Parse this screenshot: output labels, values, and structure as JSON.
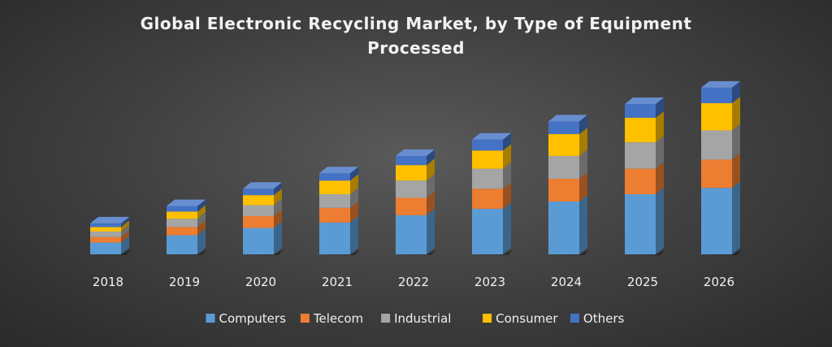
{
  "chart_data": {
    "type": "bar",
    "stacked": true,
    "style": "3d-column",
    "title": "Global Electronic Recycling Market, by Type of Equipment Processed",
    "categories": [
      "2018",
      "2019",
      "2020",
      "2021",
      "2022",
      "2023",
      "2024",
      "2025",
      "2026"
    ],
    "series": [
      {
        "name": "Computers",
        "color": "#5b9bd5",
        "values": [
          13,
          21,
          29,
          35,
          43,
          50,
          58,
          66,
          73
        ]
      },
      {
        "name": "Telecom",
        "color": "#ed7d31",
        "values": [
          6,
          9,
          13,
          16,
          19,
          22,
          25,
          28,
          31
        ]
      },
      {
        "name": "Industrial",
        "color": "#a5a5a5",
        "values": [
          6,
          9,
          12,
          15,
          19,
          22,
          25,
          29,
          32
        ]
      },
      {
        "name": "Consumer",
        "color": "#ffc000",
        "values": [
          5,
          8,
          11,
          15,
          17,
          20,
          24,
          27,
          30
        ]
      },
      {
        "name": "Others",
        "color": "#4472c4",
        "values": [
          4,
          6,
          7,
          8,
          10,
          12,
          14,
          15,
          17
        ]
      }
    ],
    "ylim": [
      0,
      190
    ],
    "yaxis_visible": false,
    "grid": false,
    "legend_position": "bottom"
  }
}
